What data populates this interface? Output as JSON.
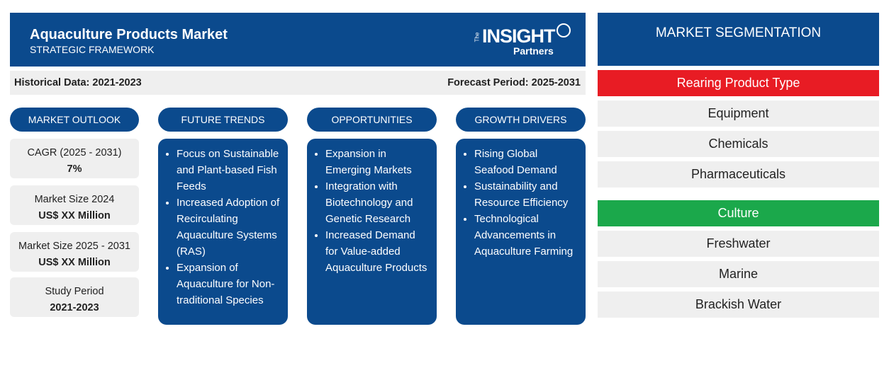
{
  "header": {
    "title": "Aquaculture Products Market",
    "subtitle": "STRATEGIC FRAMEWORK"
  },
  "logo": {
    "top": "The",
    "main": "INSIGHT",
    "sub": "Partners"
  },
  "period": {
    "historical": "Historical Data: 2021-2023",
    "forecast": "Forecast Period: 2025-2031"
  },
  "outlook": {
    "heading": "MARKET OUTLOOK",
    "items": [
      {
        "label": "CAGR (2025 - 2031)",
        "value": "7%"
      },
      {
        "label": "Market Size 2024",
        "value": "US$ XX Million"
      },
      {
        "label": "Market Size 2025 - 2031",
        "value": "US$ XX Million"
      },
      {
        "label": "Study Period",
        "value": "2021-2023"
      }
    ]
  },
  "columns": [
    {
      "heading": "FUTURE TRENDS",
      "bullets": [
        "Focus on Sustainable and Plant-based Fish Feeds",
        "Increased Adoption of Recirculating Aquaculture Systems (RAS)",
        "Expansion of Aquaculture for Non-traditional Species"
      ]
    },
    {
      "heading": "OPPORTUNITIES",
      "bullets": [
        "Expansion in Emerging Markets",
        "Integration with Biotechnology and Genetic Research",
        "Increased Demand for Value-added Aquaculture Products"
      ]
    },
    {
      "heading": "GROWTH DRIVERS",
      "bullets": [
        "Rising Global Seafood Demand",
        "Sustainability and Resource Efficiency",
        "Technological Advancements in Aquaculture Farming"
      ]
    }
  ],
  "segmentation": {
    "title": "MARKET SEGMENTATION",
    "groups": [
      {
        "name": "Rearing Product Type",
        "color": "#e81c24",
        "items": [
          "Equipment",
          "Chemicals",
          "Pharmaceuticals"
        ]
      },
      {
        "name": "Culture",
        "color": "#1ba84b",
        "items": [
          "Freshwater",
          "Marine",
          "Brackish Water"
        ]
      }
    ]
  }
}
